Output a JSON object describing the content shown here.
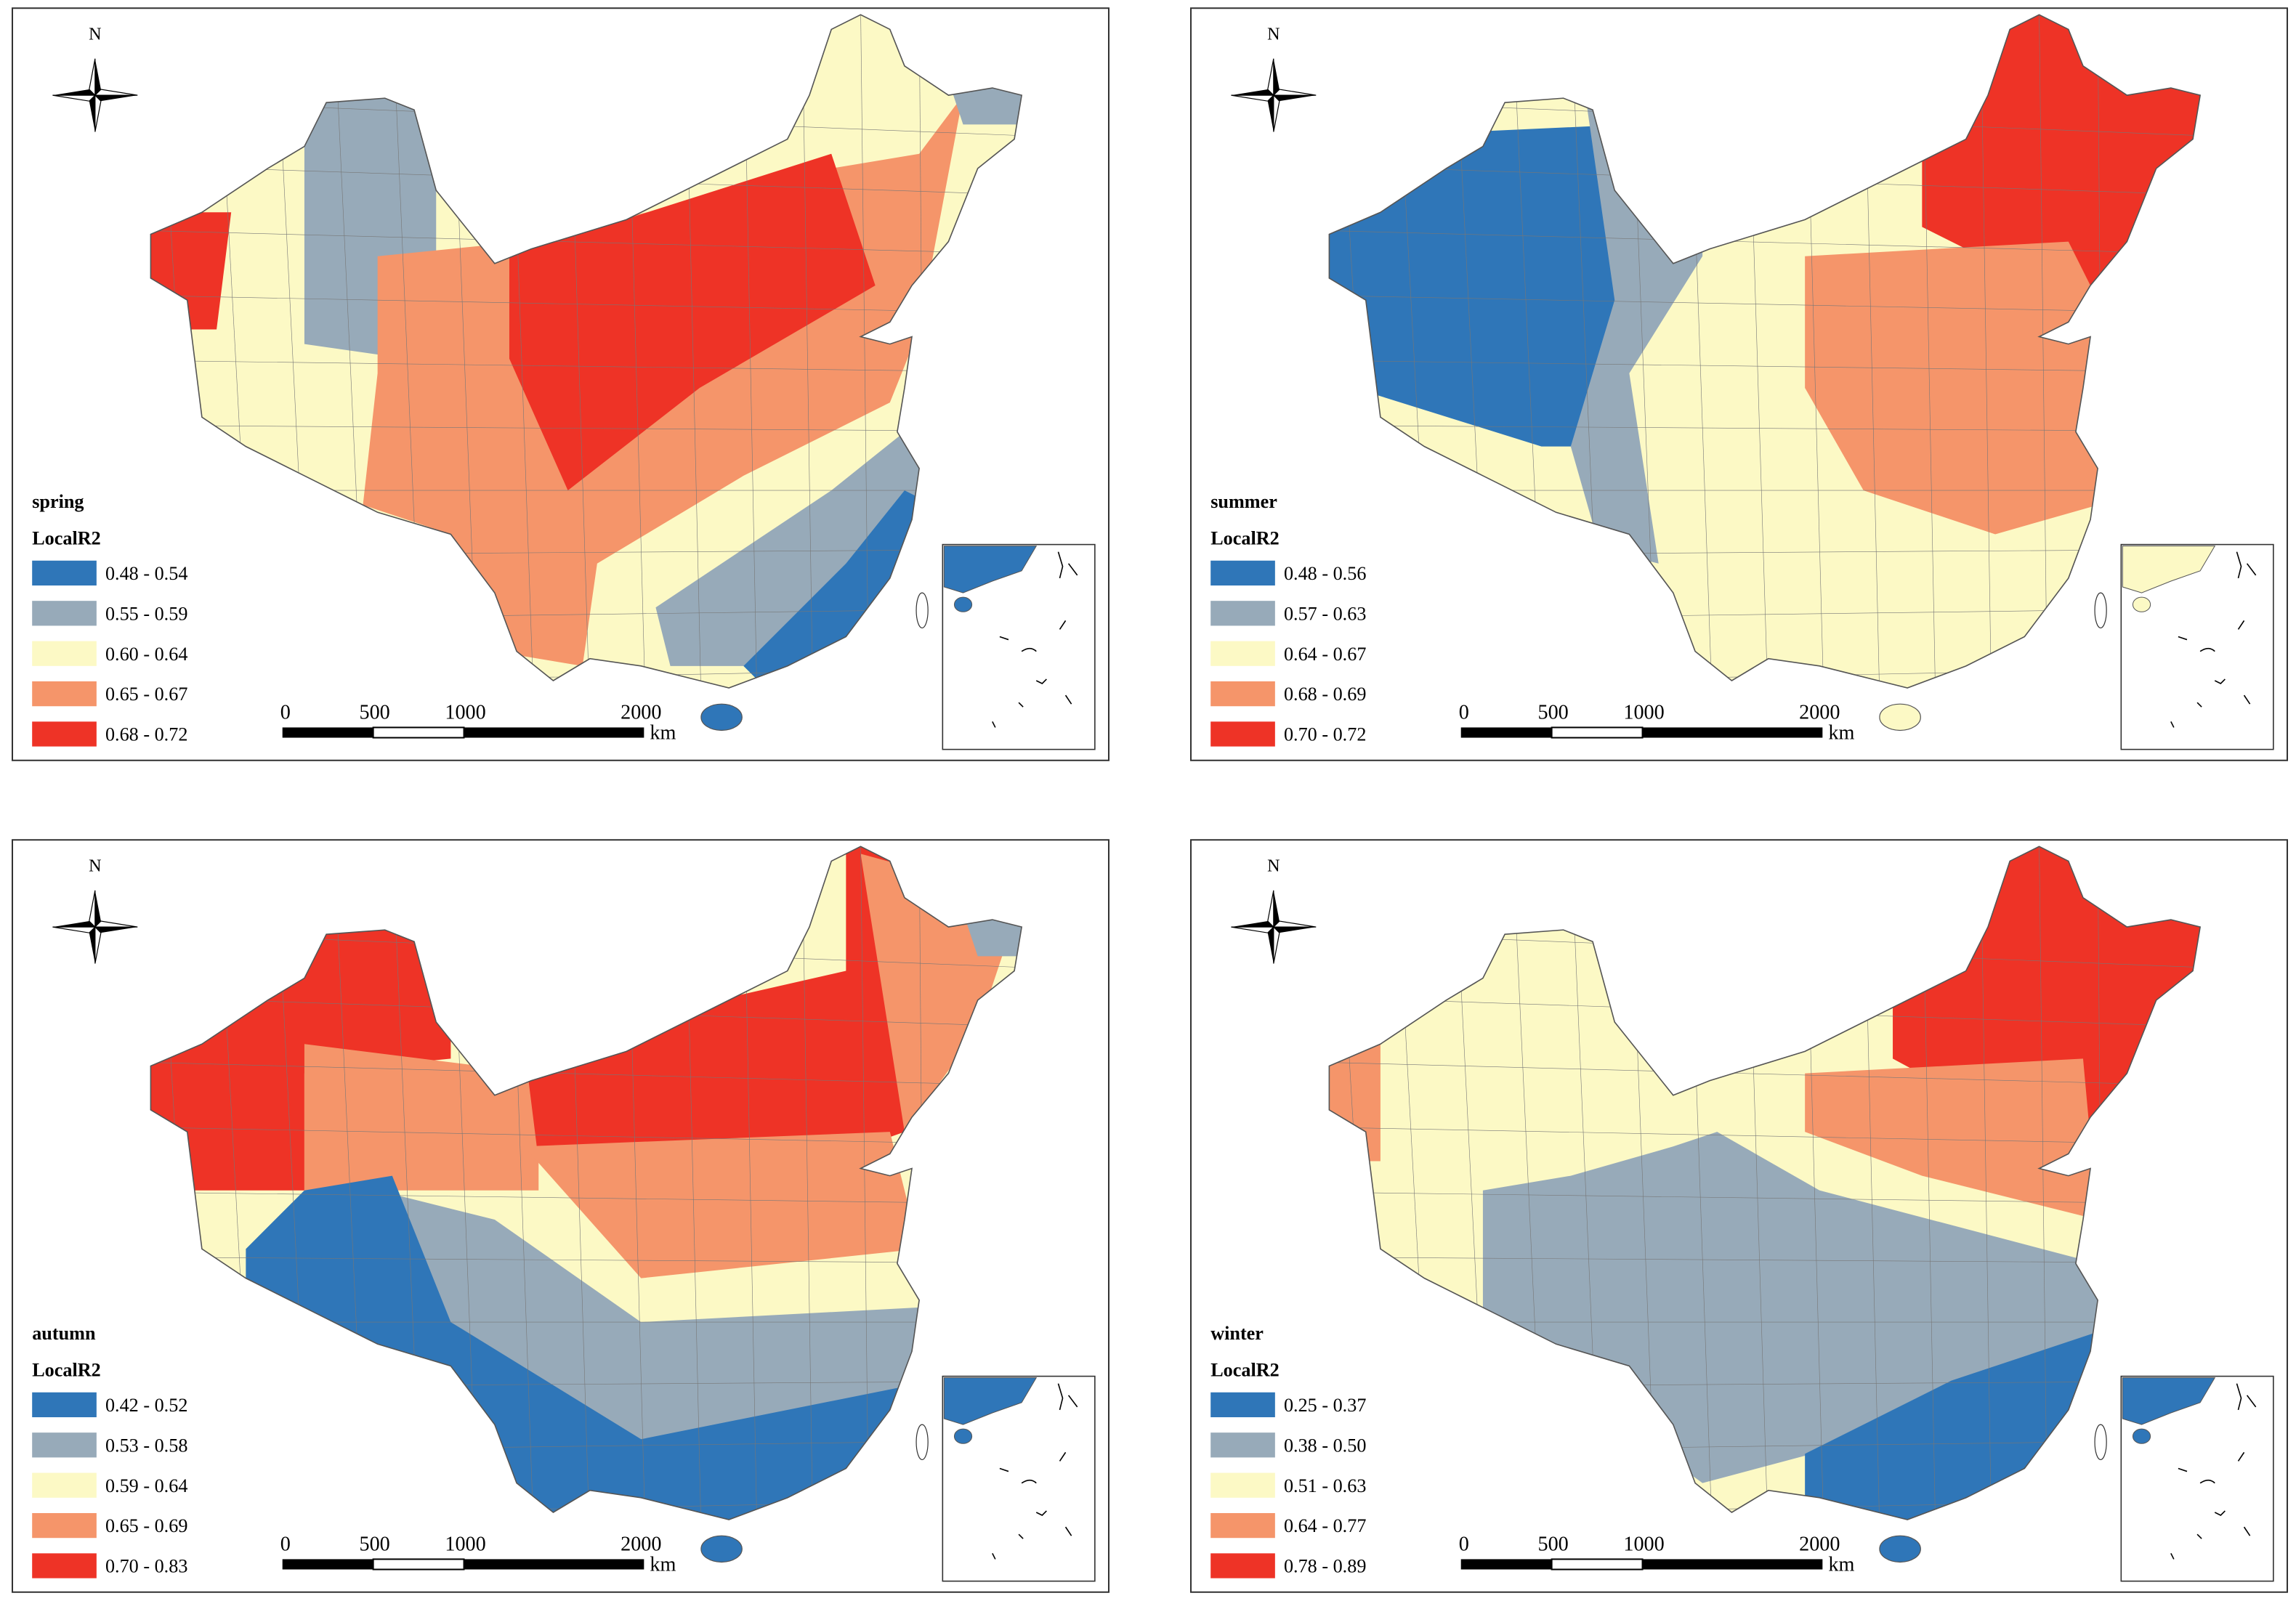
{
  "maps": [
    {
      "season": "spring",
      "legend_title": "LocalR2",
      "classes": [
        {
          "label": "0.48 - 0.54",
          "color": "#2f76b8"
        },
        {
          "label": "0.55 - 0.59",
          "color": "#97aab9"
        },
        {
          "label": "0.60 - 0.64",
          "color": "#fcf9c5"
        },
        {
          "label": "0.65 - 0.67",
          "color": "#f5956a"
        },
        {
          "label": "0.68 - 0.72",
          "color": "#ee3326"
        }
      ]
    },
    {
      "season": "summer",
      "legend_title": "LocalR2",
      "classes": [
        {
          "label": "0.48 - 0.56",
          "color": "#2f76b8"
        },
        {
          "label": "0.57 - 0.63",
          "color": "#97aab9"
        },
        {
          "label": "0.64 - 0.67",
          "color": "#fcf9c5"
        },
        {
          "label": "0.68 - 0.69",
          "color": "#f5956a"
        },
        {
          "label": "0.70 - 0.72",
          "color": "#ee3326"
        }
      ]
    },
    {
      "season": "autumn",
      "legend_title": "LocalR2",
      "classes": [
        {
          "label": "0.42 - 0.52",
          "color": "#2f76b8"
        },
        {
          "label": "0.53 - 0.58",
          "color": "#97aab9"
        },
        {
          "label": "0.59 - 0.64",
          "color": "#fcf9c5"
        },
        {
          "label": "0.65 - 0.69",
          "color": "#f5956a"
        },
        {
          "label": "0.70 - 0.83",
          "color": "#ee3326"
        }
      ]
    },
    {
      "season": "winter",
      "legend_title": "LocalR2",
      "classes": [
        {
          "label": "0.25 - 0.37",
          "color": "#2f76b8"
        },
        {
          "label": "0.38 - 0.50",
          "color": "#97aab9"
        },
        {
          "label": "0.51 - 0.63",
          "color": "#fcf9c5"
        },
        {
          "label": "0.64 - 0.77",
          "color": "#f5956a"
        },
        {
          "label": "0.78 - 0.89",
          "color": "#ee3326"
        }
      ]
    }
  ],
  "north_label": "N",
  "scale_bar": {
    "ticks": [
      "0",
      "500",
      "1000",
      "2000"
    ],
    "unit": "km"
  }
}
